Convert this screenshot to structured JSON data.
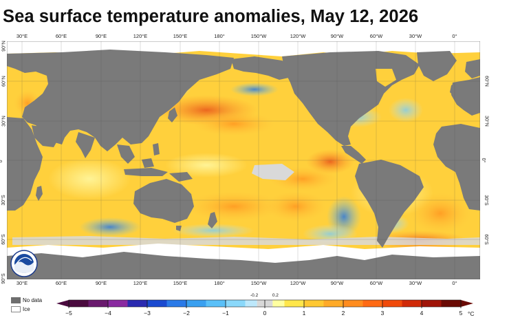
{
  "title": "Sea surface temperature anomalies, May 12, 2026",
  "lon_labels": [
    "30°E",
    "60°E",
    "90°E",
    "120°E",
    "150°E",
    "180°",
    "150°W",
    "120°W",
    "90°W",
    "60°W",
    "30°W",
    "0°"
  ],
  "lat_labels_left": [
    "90°N",
    "60°N",
    "30°N",
    "0°",
    "30°S",
    "60°S",
    "90°S"
  ],
  "lat_labels_right": [
    "60°N",
    "30°N",
    "0°",
    "30°S",
    "60°S"
  ],
  "legend": {
    "no_data_label": "No data",
    "ice_label": "Ice",
    "no_data_color": "#6e6e6e",
    "ice_color": "#ffffff"
  },
  "colorbar": {
    "tick_labels": [
      "−5",
      "−4",
      "−3",
      "−2",
      "−1",
      "0",
      "1",
      "2",
      "3",
      "4",
      "5"
    ],
    "small_labels": [
      "-0.2",
      "0.2"
    ],
    "unit": "°C",
    "range": [
      -5,
      5
    ],
    "colors": [
      "#4a0a3e",
      "#6a1a6e",
      "#8a2aa0",
      "#2a2ab0",
      "#1a4ad0",
      "#2a7ae8",
      "#3aa0f0",
      "#5ac0f8",
      "#8ad8fa",
      "#bde8fb",
      "#d8d8d8",
      "#ffffa0",
      "#ffe64a",
      "#ffc832",
      "#ffaa28",
      "#ff8c1e",
      "#ff6a14",
      "#f04a0a",
      "#d02a08",
      "#a01408",
      "#6a0a04"
    ]
  },
  "icons": {
    "logo": "noaa-logo-icon"
  }
}
